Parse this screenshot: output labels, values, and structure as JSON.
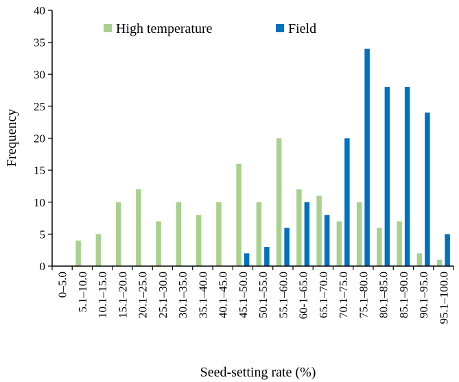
{
  "chart_data": {
    "type": "bar",
    "title": "",
    "xlabel": "Seed-setting rate (%)",
    "ylabel": "Frequency",
    "ylim": [
      0,
      40
    ],
    "yticks": [
      0,
      5,
      10,
      15,
      20,
      25,
      30,
      35,
      40
    ],
    "grid": false,
    "legend_position": "top",
    "categories": [
      "0–5.0",
      "5.1–10.0",
      "10.1–15.0",
      "15.1–20.0",
      "20.1–25.0",
      "25.1–30.0",
      "30.1–35.0",
      "35.1–40.0",
      "40.1–45.0",
      "45.1–50.0",
      "50.1–55.0",
      "55.1–60.0",
      "60-1–65.0",
      "65.1–70.0",
      "70.1–75.0",
      "75.1–80.0",
      "80.1–85.0",
      "85.1–90.0",
      "90.1–95.0",
      "95.1–100.0"
    ],
    "series": [
      {
        "name": "High temperature",
        "color": "#a9d18e",
        "values": [
          0,
          4,
          5,
          10,
          12,
          7,
          10,
          8,
          10,
          16,
          10,
          20,
          12,
          11,
          7,
          10,
          6,
          7,
          2,
          1
        ]
      },
      {
        "name": "Field",
        "color": "#0070c0",
        "values": [
          0,
          0,
          0,
          0,
          0,
          0,
          0,
          0,
          0,
          2,
          3,
          6,
          10,
          8,
          20,
          34,
          28,
          28,
          24,
          5
        ]
      }
    ]
  }
}
